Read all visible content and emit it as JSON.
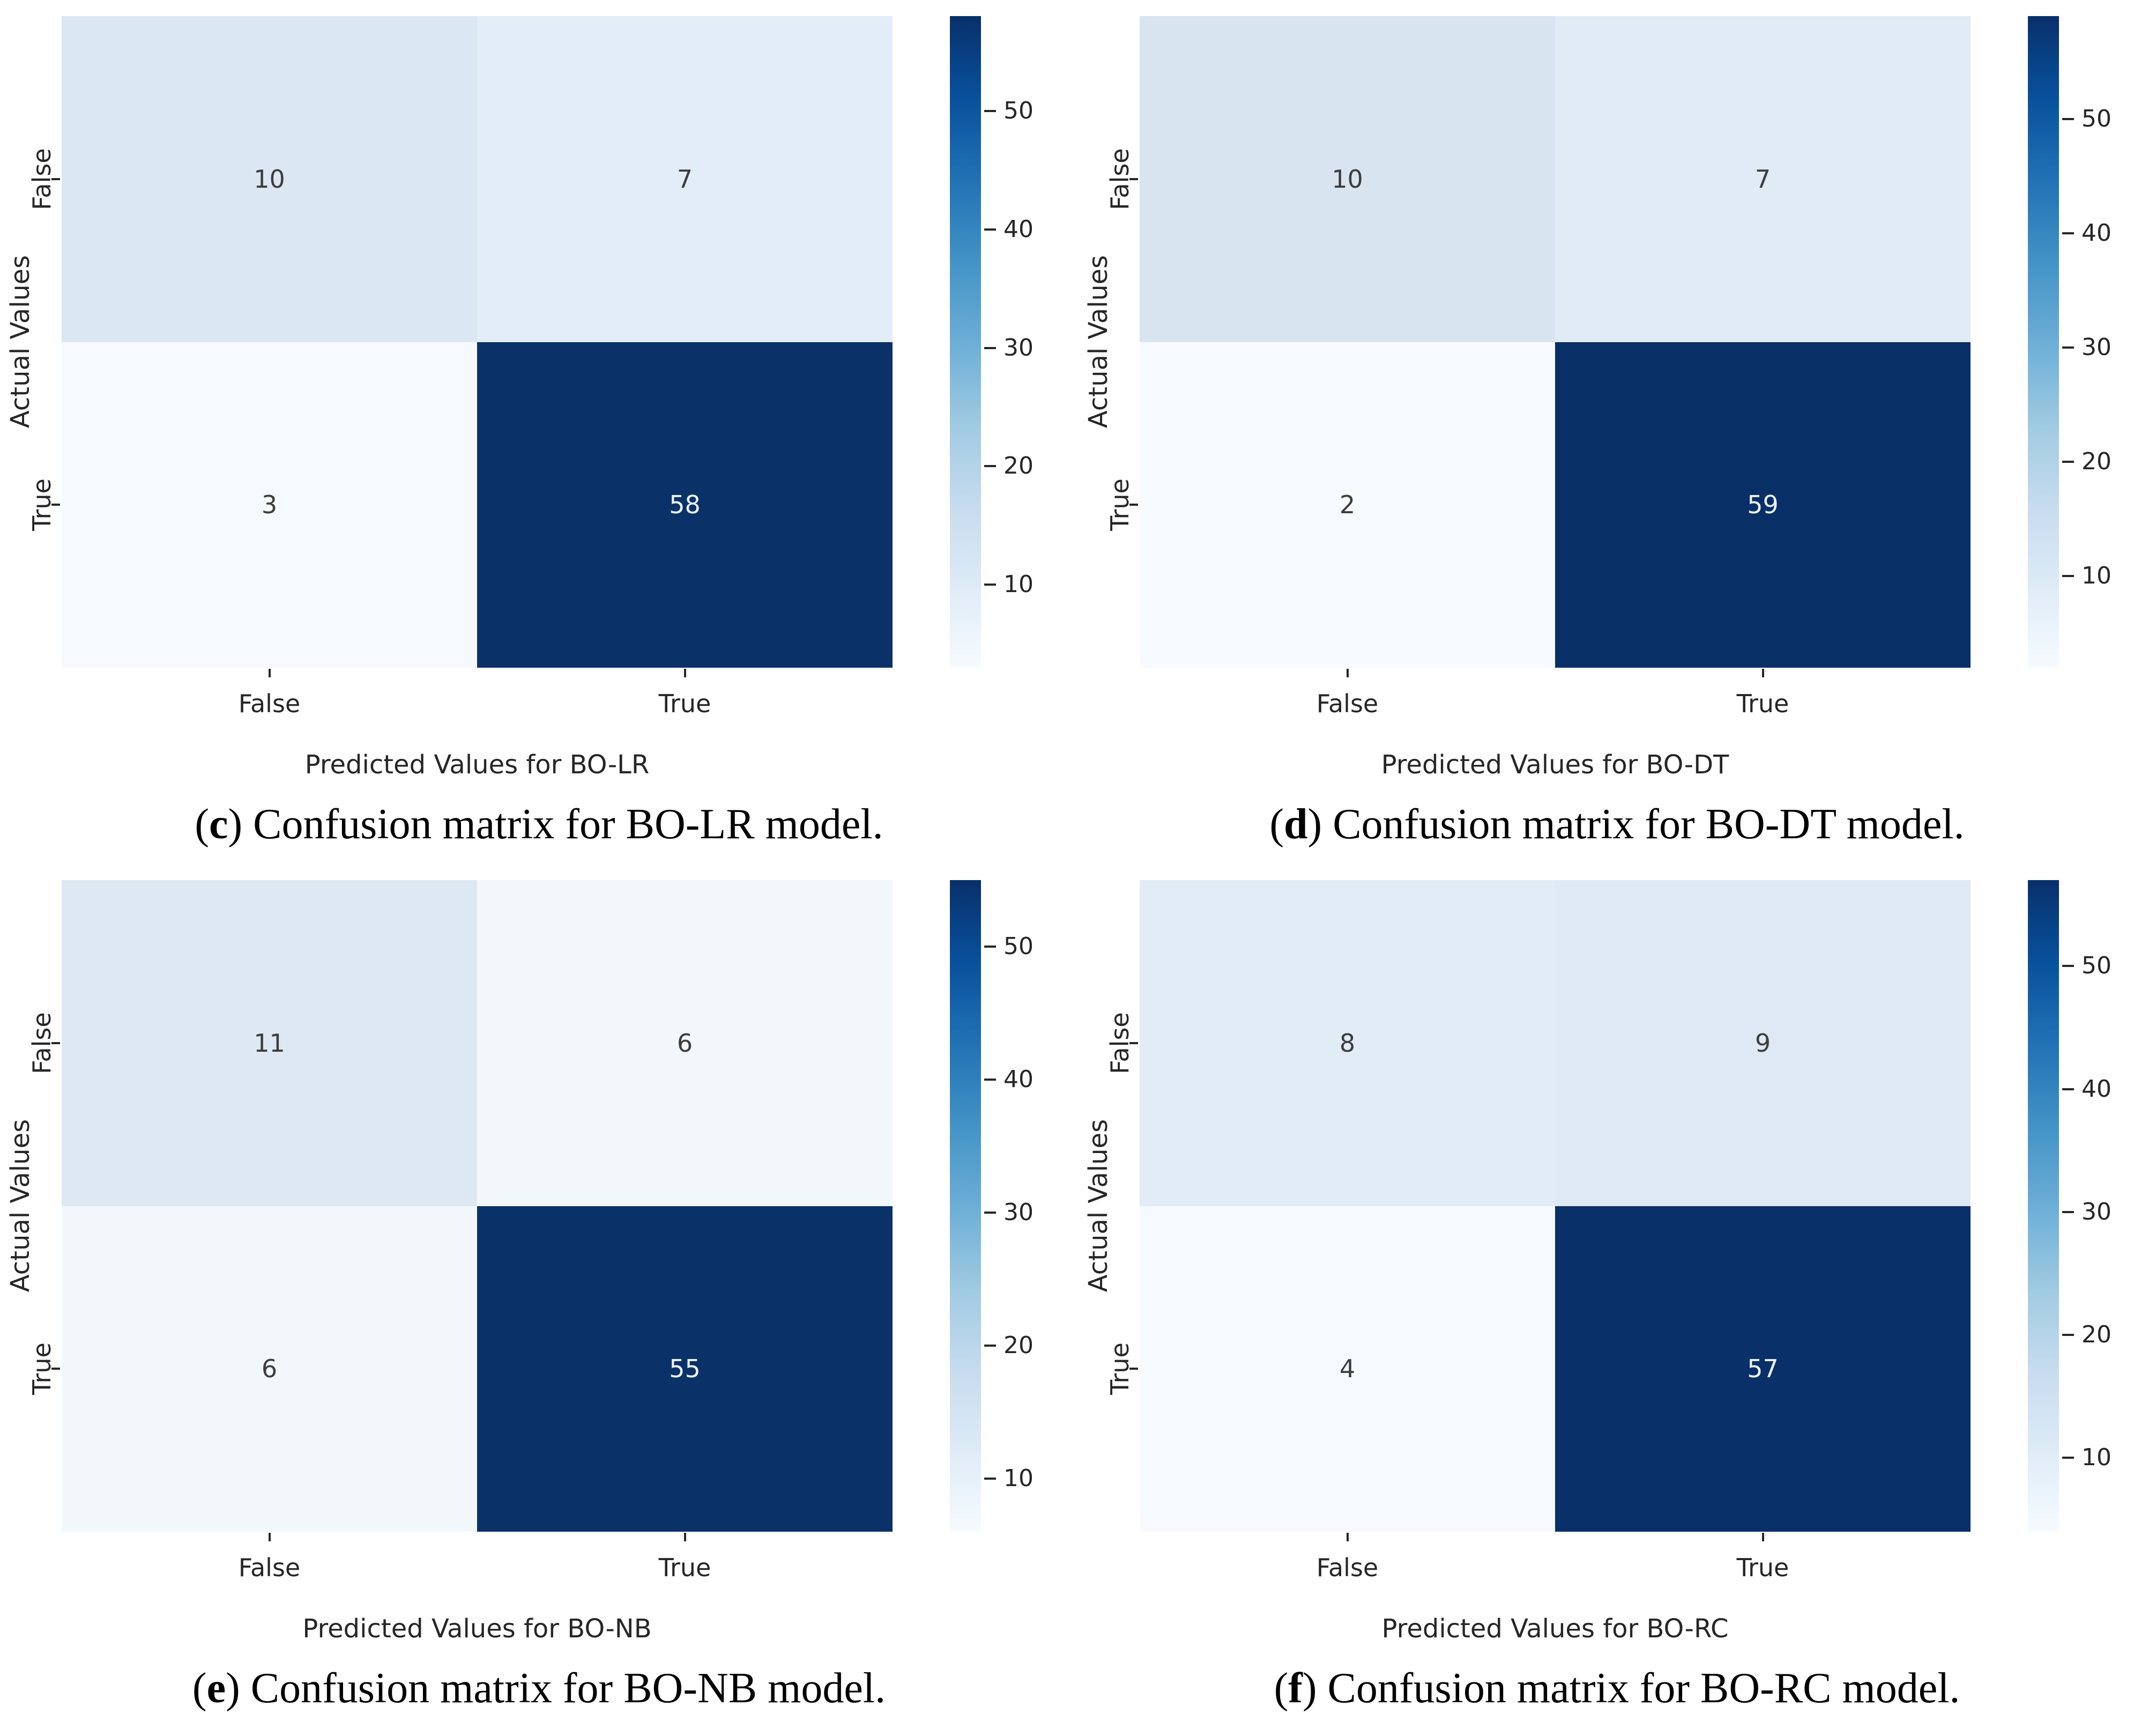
{
  "figure": {
    "background": "#ffffff",
    "grid": "2x2",
    "description_visible_text_only": true
  },
  "colors": {
    "colormap_name": "Blues",
    "colormap_stops": [
      "#f7fbff",
      "#deebf7",
      "#c6dbef",
      "#9ecae1",
      "#6baed6",
      "#4292c6",
      "#2171b5",
      "#08519c",
      "#08306b"
    ],
    "axis_text": "#262626",
    "caption_text": "#000000",
    "dark_cell_text": "#eef3fa",
    "light_cell_text": "#3d3d3d"
  },
  "chart_data": [
    {
      "type": "heatmap",
      "panel_letter": "c",
      "caption_open": "(",
      "caption_letter": "c",
      "caption_rest": ") Confusion matrix for BO-LR model.",
      "xlabel": "Predicted Values for BO-LR",
      "ylabel": "Actual Values",
      "x_ticklabels": [
        "False",
        "True"
      ],
      "y_ticklabels": [
        "False",
        "True"
      ],
      "rows": [
        [
          10,
          7
        ],
        [
          3,
          58
        ]
      ],
      "cell_colors": [
        [
          "#dbe7f3",
          "#e3edf8"
        ],
        [
          "#f6fafe",
          "#0a3168"
        ]
      ],
      "cell_text_colors": [
        [
          "#3d3d3d",
          "#3d3d3d"
        ],
        [
          "#3d3d3d",
          "#eef3fa"
        ]
      ],
      "vmin": 3,
      "vmax": 58,
      "colorbar_ticks": [
        10,
        20,
        30,
        40,
        50
      ],
      "colorbar_position": "right",
      "grid_lines": false
    },
    {
      "type": "heatmap",
      "panel_letter": "d",
      "caption_open": "(",
      "caption_letter": "d",
      "caption_rest": ") Confusion matrix for BO-DT model.",
      "xlabel": "Predicted Values for BO-DT",
      "ylabel": "Actual Values",
      "x_ticklabels": [
        "False",
        "True"
      ],
      "y_ticklabels": [
        "False",
        "True"
      ],
      "rows": [
        [
          10,
          7
        ],
        [
          2,
          59
        ]
      ],
      "cell_colors": [
        [
          "#d8e5f1",
          "#e1ebf6"
        ],
        [
          "#f7fbff",
          "#092f67"
        ]
      ],
      "cell_text_colors": [
        [
          "#3d3d3d",
          "#3d3d3d"
        ],
        [
          "#3d3d3d",
          "#eef3fa"
        ]
      ],
      "vmin": 2,
      "vmax": 59,
      "colorbar_ticks": [
        10,
        20,
        30,
        40,
        50
      ],
      "colorbar_position": "right",
      "grid_lines": false
    },
    {
      "type": "heatmap",
      "panel_letter": "e",
      "caption_open": "(",
      "caption_letter": "e",
      "caption_rest": ") Confusion matrix for BO-NB model.",
      "xlabel": "Predicted Values for BO-NB",
      "ylabel": "Actual Values",
      "x_ticklabels": [
        "False",
        "True"
      ],
      "y_ticklabels": [
        "False",
        "True"
      ],
      "rows": [
        [
          11,
          6
        ],
        [
          6,
          55
        ]
      ],
      "cell_colors": [
        [
          "#dde8f3",
          "#f2f7fc"
        ],
        [
          "#f2f7fc",
          "#0a3168"
        ]
      ],
      "cell_text_colors": [
        [
          "#3d3d3d",
          "#3d3d3d"
        ],
        [
          "#3d3d3d",
          "#eef3fa"
        ]
      ],
      "vmin": 6,
      "vmax": 55,
      "colorbar_ticks": [
        10,
        20,
        30,
        40,
        50
      ],
      "colorbar_position": "right",
      "grid_lines": false
    },
    {
      "type": "heatmap",
      "panel_letter": "f",
      "caption_open": "(",
      "caption_letter": "f",
      "caption_rest": ") Confusion matrix for BO-RC model.",
      "xlabel": "Predicted Values for BO-RC",
      "ylabel": "Actual Values",
      "x_ticklabels": [
        "False",
        "True"
      ],
      "y_ticklabels": [
        "False",
        "True"
      ],
      "rows": [
        [
          8,
          9
        ],
        [
          4,
          57
        ]
      ],
      "cell_colors": [
        [
          "#e2ecf7",
          "#dfe9f5"
        ],
        [
          "#f6fafe",
          "#093068"
        ]
      ],
      "cell_text_colors": [
        [
          "#3d3d3d",
          "#3d3d3d"
        ],
        [
          "#3d3d3d",
          "#eef3fa"
        ]
      ],
      "vmin": 4,
      "vmax": 57,
      "colorbar_ticks": [
        10,
        20,
        30,
        40,
        50
      ],
      "colorbar_position": "right",
      "grid_lines": false
    }
  ]
}
